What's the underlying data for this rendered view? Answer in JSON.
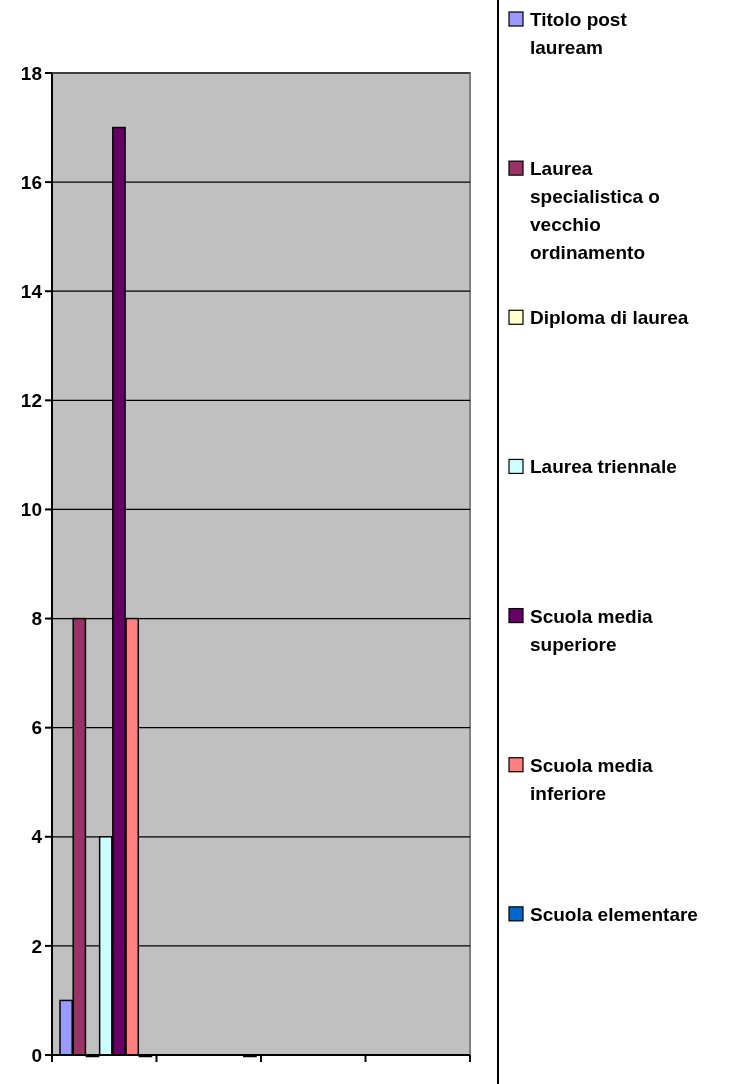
{
  "chart_data": {
    "type": "bar",
    "categories": [
      null,
      null,
      null,
      null
    ],
    "series": [
      {
        "name": "Titolo post lauream",
        "color": "#9999ff",
        "values": [
          1,
          null,
          null,
          null
        ]
      },
      {
        "name": "Laurea specialistica o vecchio ordinamento",
        "color": "#993366",
        "values": [
          8,
          null,
          null,
          null
        ]
      },
      {
        "name": "Diploma di laurea",
        "color": "#ffffcc",
        "values": [
          0,
          null,
          null,
          null
        ]
      },
      {
        "name": "Laurea triennale",
        "color": "#ccffff",
        "values": [
          4,
          null,
          null,
          null
        ]
      },
      {
        "name": "Scuola media superiore",
        "color": "#660066",
        "values": [
          17,
          null,
          null,
          null
        ]
      },
      {
        "name": "Scuola media inferiore",
        "color": "#ff8080",
        "values": [
          8,
          null,
          null,
          null
        ]
      },
      {
        "name": "Scuola elementare",
        "color": "#0066cc",
        "values": [
          0,
          0,
          null,
          null
        ]
      }
    ],
    "ylim": [
      0,
      18
    ],
    "yticks": [
      0,
      2,
      4,
      6,
      8,
      10,
      12,
      14,
      16,
      18
    ],
    "grid": "y",
    "legend": "right"
  }
}
